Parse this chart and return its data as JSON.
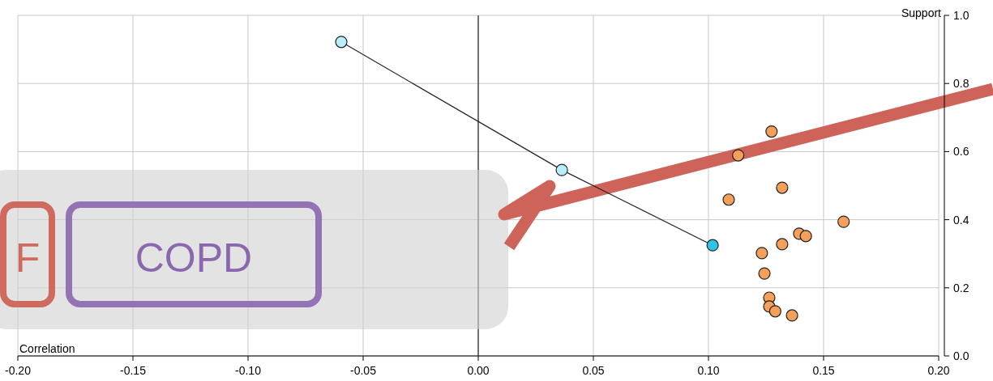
{
  "chart_data": {
    "type": "scatter",
    "xlabel": "Correlation",
    "ylabel": "Support",
    "xlim": [
      -0.2,
      0.2
    ],
    "xticks": [
      {
        "value": -0.2,
        "label": "-0.20"
      },
      {
        "value": -0.15,
        "label": "-0.15"
      },
      {
        "value": -0.1,
        "label": "-0.10"
      },
      {
        "value": -0.05,
        "label": "-0.05"
      },
      {
        "value": 0,
        "label": "0.00"
      },
      {
        "value": 0.05,
        "label": "0.05"
      },
      {
        "value": 0.1,
        "label": "0.10"
      },
      {
        "value": 0.15,
        "label": "0.15"
      },
      {
        "value": 0.2,
        "label": "0.20"
      }
    ],
    "ylim": [
      0,
      1
    ],
    "yticks": [
      {
        "value": 0,
        "label": "0.0"
      },
      {
        "value": 0.2,
        "label": "0.2"
      },
      {
        "value": 0.4,
        "label": "0.4"
      },
      {
        "value": 0.6,
        "label": "0.6"
      },
      {
        "value": 0.8,
        "label": "0.8"
      },
      {
        "value": 1,
        "label": "1.0"
      }
    ],
    "grid": true,
    "marker": "circle",
    "ref_lines": [
      {
        "axis": "x",
        "value": 0,
        "color": "#000000"
      }
    ],
    "annotations": [
      "F",
      "COPD"
    ],
    "series": [
      {
        "type": "line",
        "color": "#222222",
        "colors": [
          "#b8eefa",
          "#b8eefa",
          "#2ec4e6"
        ],
        "x": [
          -0.0595,
          0.0363,
          0.1018
        ],
        "values": [
          0.922,
          0.546,
          0.325
        ]
      },
      {
        "color": "#f5a05a",
        "x": [
          0.1274,
          0.1129,
          0.132,
          0.1088,
          0.1587,
          0.1394,
          0.1423,
          0.132,
          0.1232,
          0.1243,
          0.1264,
          0.1264,
          0.129,
          0.1363
        ],
        "values": [
          0.659,
          0.589,
          0.494,
          0.459,
          0.394,
          0.359,
          0.352,
          0.328,
          0.302,
          0.242,
          0.171,
          0.145,
          0.131,
          0.119
        ]
      }
    ]
  }
}
